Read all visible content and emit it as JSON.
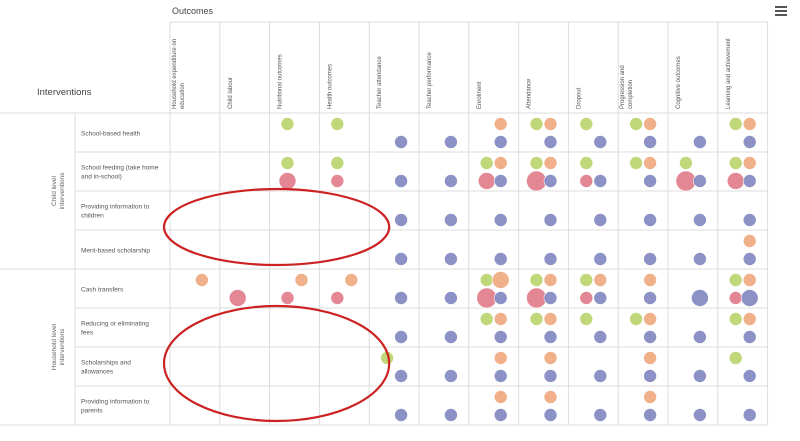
{
  "header": {
    "outcomes_title": "Outcomes",
    "interventions_title": "Interventions"
  },
  "chart_data": {
    "type": "scatter",
    "subtype": "evidence-gap-map",
    "columns": [
      "Household expenditure on education",
      "Child labour",
      "Nutritional outcomes",
      "Health outcomes",
      "Teacher attendance",
      "Teacher performance",
      "Enrolment",
      "Attendance",
      "Dropout",
      "Progression and completion",
      "Cognitive outcomes",
      "Learning and achievement"
    ],
    "groups": [
      {
        "name": "Child level interventions",
        "rows": [
          0,
          1,
          2,
          3
        ]
      },
      {
        "name": "Household level interventions",
        "rows": [
          4,
          5,
          6,
          7
        ]
      }
    ],
    "rows": [
      "School-based health",
      "School feeding (take home and in-school)",
      "Providing information to children",
      "Merit-based scholarship",
      "Cash transfers",
      "Reducing or eliminating fees",
      "Scholarships and allowances",
      "Providing information to parents"
    ],
    "colors": {
      "green": "#b9d46b",
      "orange": "#eea77c",
      "blue": "#7f86bf",
      "red": "#e07a8a"
    },
    "bubbles": [
      {
        "r": 0,
        "c": 2,
        "lv": 0,
        "s": 0,
        "col": "green"
      },
      {
        "r": 0,
        "c": 3,
        "lv": 0,
        "s": 0,
        "col": "green"
      },
      {
        "r": 0,
        "c": 6,
        "lv": 0,
        "s": 1,
        "col": "orange"
      },
      {
        "r": 0,
        "c": 7,
        "lv": 0,
        "s": 0,
        "col": "green"
      },
      {
        "r": 0,
        "c": 7,
        "lv": 0,
        "s": 1,
        "col": "orange"
      },
      {
        "r": 0,
        "c": 8,
        "lv": 0,
        "s": 0,
        "col": "green"
      },
      {
        "r": 0,
        "c": 9,
        "lv": 0,
        "s": 0,
        "col": "green"
      },
      {
        "r": 0,
        "c": 9,
        "lv": 0,
        "s": 1,
        "col": "orange"
      },
      {
        "r": 0,
        "c": 11,
        "lv": 0,
        "s": 0,
        "col": "green"
      },
      {
        "r": 0,
        "c": 11,
        "lv": 0,
        "s": 1,
        "col": "orange"
      },
      {
        "r": 0,
        "c": 4,
        "lv": 1,
        "s": 1,
        "col": "blue"
      },
      {
        "r": 0,
        "c": 5,
        "lv": 1,
        "s": 1,
        "col": "blue"
      },
      {
        "r": 0,
        "c": 6,
        "lv": 1,
        "s": 1,
        "col": "blue"
      },
      {
        "r": 0,
        "c": 7,
        "lv": 1,
        "s": 1,
        "col": "blue"
      },
      {
        "r": 0,
        "c": 8,
        "lv": 1,
        "s": 1,
        "col": "blue"
      },
      {
        "r": 0,
        "c": 9,
        "lv": 1,
        "s": 1,
        "col": "blue"
      },
      {
        "r": 0,
        "c": 10,
        "lv": 1,
        "s": 1,
        "col": "blue"
      },
      {
        "r": 0,
        "c": 11,
        "lv": 1,
        "s": 1,
        "col": "blue"
      },
      {
        "r": 1,
        "c": 2,
        "lv": 0,
        "s": 0,
        "col": "green"
      },
      {
        "r": 1,
        "c": 3,
        "lv": 0,
        "s": 0,
        "col": "green"
      },
      {
        "r": 1,
        "c": 6,
        "lv": 0,
        "s": 0,
        "col": "green"
      },
      {
        "r": 1,
        "c": 6,
        "lv": 0,
        "s": 1,
        "col": "orange"
      },
      {
        "r": 1,
        "c": 7,
        "lv": 0,
        "s": 0,
        "col": "green"
      },
      {
        "r": 1,
        "c": 7,
        "lv": 0,
        "s": 1,
        "col": "orange"
      },
      {
        "r": 1,
        "c": 8,
        "lv": 0,
        "s": 0,
        "col": "green"
      },
      {
        "r": 1,
        "c": 9,
        "lv": 0,
        "s": 0,
        "col": "green"
      },
      {
        "r": 1,
        "c": 9,
        "lv": 0,
        "s": 1,
        "col": "orange"
      },
      {
        "r": 1,
        "c": 10,
        "lv": 0,
        "s": 0,
        "col": "green"
      },
      {
        "r": 1,
        "c": 11,
        "lv": 0,
        "s": 0,
        "col": "green"
      },
      {
        "r": 1,
        "c": 11,
        "lv": 0,
        "s": 1,
        "col": "orange"
      },
      {
        "r": 1,
        "c": 2,
        "lv": 1,
        "s": 0,
        "col": "red",
        "big": 1
      },
      {
        "r": 1,
        "c": 3,
        "lv": 1,
        "s": 0,
        "col": "red"
      },
      {
        "r": 1,
        "c": 4,
        "lv": 1,
        "s": 1,
        "col": "blue"
      },
      {
        "r": 1,
        "c": 5,
        "lv": 1,
        "s": 1,
        "col": "blue"
      },
      {
        "r": 1,
        "c": 6,
        "lv": 1,
        "s": 0,
        "col": "red",
        "big": 1
      },
      {
        "r": 1,
        "c": 6,
        "lv": 1,
        "s": 1,
        "col": "blue"
      },
      {
        "r": 1,
        "c": 7,
        "lv": 1,
        "s": 0,
        "col": "red",
        "big": 2
      },
      {
        "r": 1,
        "c": 7,
        "lv": 1,
        "s": 1,
        "col": "blue"
      },
      {
        "r": 1,
        "c": 8,
        "lv": 1,
        "s": 0,
        "col": "red"
      },
      {
        "r": 1,
        "c": 8,
        "lv": 1,
        "s": 1,
        "col": "blue"
      },
      {
        "r": 1,
        "c": 9,
        "lv": 1,
        "s": 1,
        "col": "blue"
      },
      {
        "r": 1,
        "c": 10,
        "lv": 1,
        "s": 0,
        "col": "red",
        "big": 2
      },
      {
        "r": 1,
        "c": 10,
        "lv": 1,
        "s": 1,
        "col": "blue"
      },
      {
        "r": 1,
        "c": 11,
        "lv": 1,
        "s": 0,
        "col": "red",
        "big": 1
      },
      {
        "r": 1,
        "c": 11,
        "lv": 1,
        "s": 1,
        "col": "blue"
      },
      {
        "r": 2,
        "c": 4,
        "lv": 1,
        "s": 1,
        "col": "blue"
      },
      {
        "r": 2,
        "c": 5,
        "lv": 1,
        "s": 1,
        "col": "blue"
      },
      {
        "r": 2,
        "c": 6,
        "lv": 1,
        "s": 1,
        "col": "blue"
      },
      {
        "r": 2,
        "c": 7,
        "lv": 1,
        "s": 1,
        "col": "blue"
      },
      {
        "r": 2,
        "c": 8,
        "lv": 1,
        "s": 1,
        "col": "blue"
      },
      {
        "r": 2,
        "c": 9,
        "lv": 1,
        "s": 1,
        "col": "blue"
      },
      {
        "r": 2,
        "c": 10,
        "lv": 1,
        "s": 1,
        "col": "blue"
      },
      {
        "r": 2,
        "c": 11,
        "lv": 1,
        "s": 1,
        "col": "blue"
      },
      {
        "r": 3,
        "c": 11,
        "lv": 0,
        "s": 1,
        "col": "orange"
      },
      {
        "r": 3,
        "c": 4,
        "lv": 1,
        "s": 1,
        "col": "blue"
      },
      {
        "r": 3,
        "c": 5,
        "lv": 1,
        "s": 1,
        "col": "blue"
      },
      {
        "r": 3,
        "c": 6,
        "lv": 1,
        "s": 1,
        "col": "blue"
      },
      {
        "r": 3,
        "c": 7,
        "lv": 1,
        "s": 1,
        "col": "blue"
      },
      {
        "r": 3,
        "c": 8,
        "lv": 1,
        "s": 1,
        "col": "blue"
      },
      {
        "r": 3,
        "c": 9,
        "lv": 1,
        "s": 1,
        "col": "blue"
      },
      {
        "r": 3,
        "c": 10,
        "lv": 1,
        "s": 1,
        "col": "blue"
      },
      {
        "r": 3,
        "c": 11,
        "lv": 1,
        "s": 1,
        "col": "blue"
      },
      {
        "r": 4,
        "c": 0,
        "lv": 0,
        "s": 1,
        "col": "orange"
      },
      {
        "r": 4,
        "c": 2,
        "lv": 0,
        "s": 1,
        "col": "orange"
      },
      {
        "r": 4,
        "c": 3,
        "lv": 0,
        "s": 1,
        "col": "orange"
      },
      {
        "r": 4,
        "c": 6,
        "lv": 0,
        "s": 0,
        "col": "green"
      },
      {
        "r": 4,
        "c": 6,
        "lv": 0,
        "s": 1,
        "col": "orange",
        "big": 1
      },
      {
        "r": 4,
        "c": 7,
        "lv": 0,
        "s": 0,
        "col": "green"
      },
      {
        "r": 4,
        "c": 7,
        "lv": 0,
        "s": 1,
        "col": "orange"
      },
      {
        "r": 4,
        "c": 8,
        "lv": 0,
        "s": 0,
        "col": "green"
      },
      {
        "r": 4,
        "c": 8,
        "lv": 0,
        "s": 1,
        "col": "orange"
      },
      {
        "r": 4,
        "c": 9,
        "lv": 0,
        "s": 1,
        "col": "orange"
      },
      {
        "r": 4,
        "c": 11,
        "lv": 0,
        "s": 0,
        "col": "green"
      },
      {
        "r": 4,
        "c": 11,
        "lv": 0,
        "s": 1,
        "col": "orange"
      },
      {
        "r": 4,
        "c": 1,
        "lv": 1,
        "s": 0,
        "col": "red",
        "big": 1
      },
      {
        "r": 4,
        "c": 2,
        "lv": 1,
        "s": 0,
        "col": "red"
      },
      {
        "r": 4,
        "c": 3,
        "lv": 1,
        "s": 0,
        "col": "red"
      },
      {
        "r": 4,
        "c": 4,
        "lv": 1,
        "s": 1,
        "col": "blue"
      },
      {
        "r": 4,
        "c": 5,
        "lv": 1,
        "s": 1,
        "col": "blue"
      },
      {
        "r": 4,
        "c": 6,
        "lv": 1,
        "s": 0,
        "col": "red",
        "big": 2
      },
      {
        "r": 4,
        "c": 6,
        "lv": 1,
        "s": 1,
        "col": "blue"
      },
      {
        "r": 4,
        "c": 7,
        "lv": 1,
        "s": 0,
        "col": "red",
        "big": 2
      },
      {
        "r": 4,
        "c": 7,
        "lv": 1,
        "s": 1,
        "col": "blue"
      },
      {
        "r": 4,
        "c": 8,
        "lv": 1,
        "s": 0,
        "col": "red"
      },
      {
        "r": 4,
        "c": 8,
        "lv": 1,
        "s": 1,
        "col": "blue"
      },
      {
        "r": 4,
        "c": 9,
        "lv": 1,
        "s": 1,
        "col": "blue"
      },
      {
        "r": 4,
        "c": 10,
        "lv": 1,
        "s": 1,
        "col": "blue",
        "big": 1
      },
      {
        "r": 4,
        "c": 11,
        "lv": 1,
        "s": 0,
        "col": "red"
      },
      {
        "r": 4,
        "c": 11,
        "lv": 1,
        "s": 1,
        "col": "blue",
        "big": 1
      },
      {
        "r": 5,
        "c": 6,
        "lv": 0,
        "s": 0,
        "col": "green"
      },
      {
        "r": 5,
        "c": 6,
        "lv": 0,
        "s": 1,
        "col": "orange"
      },
      {
        "r": 5,
        "c": 7,
        "lv": 0,
        "s": 0,
        "col": "green"
      },
      {
        "r": 5,
        "c": 7,
        "lv": 0,
        "s": 1,
        "col": "orange"
      },
      {
        "r": 5,
        "c": 8,
        "lv": 0,
        "s": 0,
        "col": "green"
      },
      {
        "r": 5,
        "c": 9,
        "lv": 0,
        "s": 0,
        "col": "green"
      },
      {
        "r": 5,
        "c": 9,
        "lv": 0,
        "s": 1,
        "col": "orange"
      },
      {
        "r": 5,
        "c": 11,
        "lv": 0,
        "s": 0,
        "col": "green"
      },
      {
        "r": 5,
        "c": 11,
        "lv": 0,
        "s": 1,
        "col": "orange"
      },
      {
        "r": 5,
        "c": 4,
        "lv": 1,
        "s": 1,
        "col": "blue"
      },
      {
        "r": 5,
        "c": 5,
        "lv": 1,
        "s": 1,
        "col": "blue"
      },
      {
        "r": 5,
        "c": 6,
        "lv": 1,
        "s": 1,
        "col": "blue"
      },
      {
        "r": 5,
        "c": 7,
        "lv": 1,
        "s": 1,
        "col": "blue"
      },
      {
        "r": 5,
        "c": 8,
        "lv": 1,
        "s": 1,
        "col": "blue"
      },
      {
        "r": 5,
        "c": 9,
        "lv": 1,
        "s": 1,
        "col": "blue"
      },
      {
        "r": 5,
        "c": 10,
        "lv": 1,
        "s": 1,
        "col": "blue"
      },
      {
        "r": 5,
        "c": 11,
        "lv": 1,
        "s": 1,
        "col": "blue"
      },
      {
        "r": 6,
        "c": 4,
        "lv": 0,
        "s": 0,
        "col": "green"
      },
      {
        "r": 6,
        "c": 6,
        "lv": 0,
        "s": 1,
        "col": "orange"
      },
      {
        "r": 6,
        "c": 7,
        "lv": 0,
        "s": 1,
        "col": "orange"
      },
      {
        "r": 6,
        "c": 9,
        "lv": 0,
        "s": 1,
        "col": "orange"
      },
      {
        "r": 6,
        "c": 11,
        "lv": 0,
        "s": 0,
        "col": "green"
      },
      {
        "r": 6,
        "c": 4,
        "lv": 1,
        "s": 1,
        "col": "blue"
      },
      {
        "r": 6,
        "c": 5,
        "lv": 1,
        "s": 1,
        "col": "blue"
      },
      {
        "r": 6,
        "c": 6,
        "lv": 1,
        "s": 1,
        "col": "blue"
      },
      {
        "r": 6,
        "c": 7,
        "lv": 1,
        "s": 1,
        "col": "blue"
      },
      {
        "r": 6,
        "c": 8,
        "lv": 1,
        "s": 1,
        "col": "blue"
      },
      {
        "r": 6,
        "c": 9,
        "lv": 1,
        "s": 1,
        "col": "blue"
      },
      {
        "r": 6,
        "c": 10,
        "lv": 1,
        "s": 1,
        "col": "blue"
      },
      {
        "r": 6,
        "c": 11,
        "lv": 1,
        "s": 1,
        "col": "blue"
      },
      {
        "r": 7,
        "c": 6,
        "lv": 0,
        "s": 1,
        "col": "orange"
      },
      {
        "r": 7,
        "c": 7,
        "lv": 0,
        "s": 1,
        "col": "orange"
      },
      {
        "r": 7,
        "c": 9,
        "lv": 0,
        "s": 1,
        "col": "orange"
      },
      {
        "r": 7,
        "c": 4,
        "lv": 1,
        "s": 1,
        "col": "blue"
      },
      {
        "r": 7,
        "c": 5,
        "lv": 1,
        "s": 1,
        "col": "blue"
      },
      {
        "r": 7,
        "c": 6,
        "lv": 1,
        "s": 1,
        "col": "blue"
      },
      {
        "r": 7,
        "c": 7,
        "lv": 1,
        "s": 1,
        "col": "blue"
      },
      {
        "r": 7,
        "c": 8,
        "lv": 1,
        "s": 1,
        "col": "blue"
      },
      {
        "r": 7,
        "c": 9,
        "lv": 1,
        "s": 1,
        "col": "blue"
      },
      {
        "r": 7,
        "c": 10,
        "lv": 1,
        "s": 1,
        "col": "blue"
      },
      {
        "r": 7,
        "c": 11,
        "lv": 1,
        "s": 1,
        "col": "blue"
      }
    ],
    "annotations": [
      {
        "shape": "ellipse",
        "color": "#cc2222",
        "spans_rows": [
          2,
          3
        ],
        "spans_cols": [
          0,
          3
        ]
      },
      {
        "shape": "ellipse",
        "color": "#cc2222",
        "spans_rows": [
          5,
          7
        ],
        "spans_cols": [
          0,
          3
        ]
      }
    ],
    "grid": true,
    "legend": "none"
  }
}
